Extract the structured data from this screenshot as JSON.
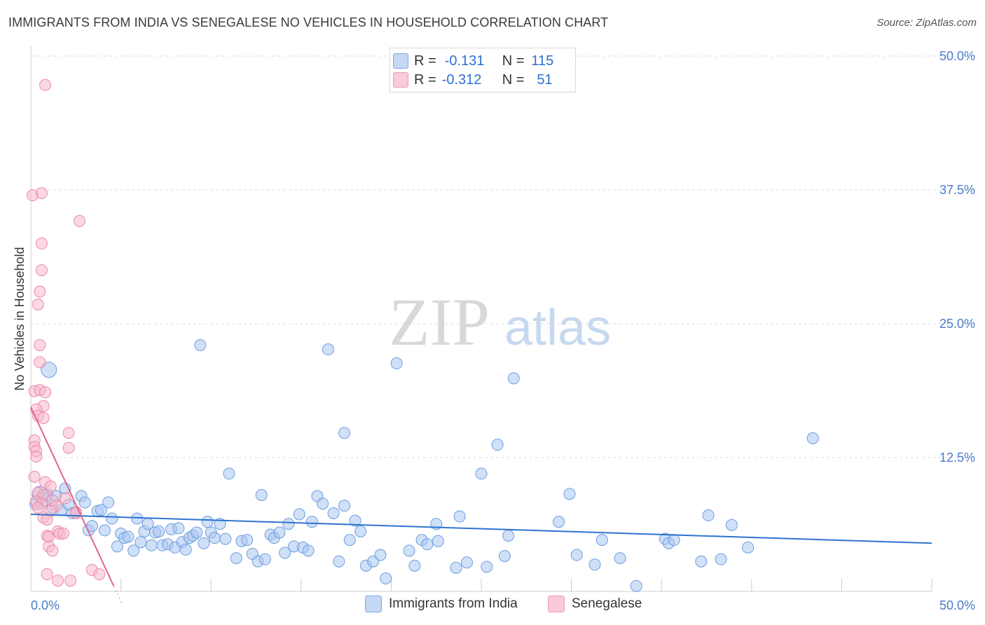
{
  "title": "IMMIGRANTS FROM INDIA VS SENEGALESE NO VEHICLES IN HOUSEHOLD CORRELATION CHART",
  "source": "Source: ZipAtlas.com",
  "watermark": {
    "zip": "ZIP",
    "atlas": "atlas"
  },
  "legend": {
    "rows": [
      {
        "r_label": "R =",
        "r_value": "-0.131",
        "n_label": "N =",
        "n_value": "115"
      },
      {
        "r_label": "R =",
        "r_value": "-0.312",
        "n_label": "N =",
        "n_value": "51"
      }
    ]
  },
  "colors": {
    "india_fill": "#a9c6f0",
    "india_stroke": "#6b9de0",
    "india_line": "#2e74d0",
    "sen_fill": "#f7b8cb",
    "sen_stroke": "#ea8aa8",
    "sen_line": "#e0648e",
    "grid": "#dddddd",
    "axis_label": "#4a7cc9"
  },
  "chart_data": {
    "type": "scatter",
    "title": "IMMIGRANTS FROM INDIA VS SENEGALESE NO VEHICLES IN HOUSEHOLD CORRELATION CHART",
    "xlabel": "",
    "ylabel": "No Vehicles in Household",
    "xlim": [
      0,
      50
    ],
    "ylim": [
      0,
      50
    ],
    "x_tick_labels": [
      "0.0%",
      "50.0%"
    ],
    "y_ticks": [
      12.5,
      25.0,
      37.5,
      50.0
    ],
    "y_tick_labels": [
      "12.5%",
      "25.0%",
      "37.5%",
      "50.0%"
    ],
    "grid": true,
    "legend_position": "top-center",
    "series": [
      {
        "name": "Immigrants from India",
        "r": -0.131,
        "n": 115,
        "trend": {
          "x": [
            0,
            50
          ],
          "y": [
            7.2,
            4.5
          ]
        },
        "points": [
          {
            "x": 0.3,
            "y": 8.2,
            "s": 9
          },
          {
            "x": 0.5,
            "y": 9.1,
            "s": 11
          },
          {
            "x": 0.7,
            "y": 8.6,
            "s": 10
          },
          {
            "x": 0.9,
            "y": 9.0,
            "s": 9
          },
          {
            "x": 1.0,
            "y": 20.7,
            "s": 11
          },
          {
            "x": 1.2,
            "y": 7.8,
            "s": 8
          },
          {
            "x": 1.4,
            "y": 8.9,
            "s": 8
          },
          {
            "x": 1.7,
            "y": 7.6,
            "s": 8
          },
          {
            "x": 1.9,
            "y": 9.6,
            "s": 8
          },
          {
            "x": 2.1,
            "y": 8.1,
            "s": 8
          },
          {
            "x": 2.3,
            "y": 7.3,
            "s": 8
          },
          {
            "x": 2.5,
            "y": 7.4,
            "s": 8
          },
          {
            "x": 2.8,
            "y": 8.9,
            "s": 8
          },
          {
            "x": 3.0,
            "y": 8.3,
            "s": 8
          },
          {
            "x": 3.2,
            "y": 5.7,
            "s": 8
          },
          {
            "x": 3.4,
            "y": 6.1,
            "s": 8
          },
          {
            "x": 3.7,
            "y": 7.5,
            "s": 8
          },
          {
            "x": 3.9,
            "y": 7.6,
            "s": 8
          },
          {
            "x": 4.1,
            "y": 5.7,
            "s": 8
          },
          {
            "x": 4.3,
            "y": 8.3,
            "s": 8
          },
          {
            "x": 4.5,
            "y": 6.8,
            "s": 8
          },
          {
            "x": 4.8,
            "y": 4.2,
            "s": 8
          },
          {
            "x": 5.0,
            "y": 5.4,
            "s": 8
          },
          {
            "x": 5.2,
            "y": 5.0,
            "s": 8
          },
          {
            "x": 5.4,
            "y": 5.1,
            "s": 8
          },
          {
            "x": 5.7,
            "y": 3.8,
            "s": 8
          },
          {
            "x": 5.9,
            "y": 6.8,
            "s": 8
          },
          {
            "x": 6.1,
            "y": 4.6,
            "s": 8
          },
          {
            "x": 6.3,
            "y": 5.6,
            "s": 8
          },
          {
            "x": 6.5,
            "y": 6.3,
            "s": 8
          },
          {
            "x": 6.7,
            "y": 4.3,
            "s": 8
          },
          {
            "x": 6.9,
            "y": 5.5,
            "s": 8
          },
          {
            "x": 7.1,
            "y": 5.6,
            "s": 8
          },
          {
            "x": 7.3,
            "y": 4.3,
            "s": 8
          },
          {
            "x": 7.6,
            "y": 4.4,
            "s": 8
          },
          {
            "x": 7.8,
            "y": 5.8,
            "s": 8
          },
          {
            "x": 8.0,
            "y": 4.1,
            "s": 8
          },
          {
            "x": 8.2,
            "y": 5.9,
            "s": 8
          },
          {
            "x": 8.4,
            "y": 4.6,
            "s": 8
          },
          {
            "x": 8.6,
            "y": 3.9,
            "s": 8
          },
          {
            "x": 8.8,
            "y": 5.0,
            "s": 8
          },
          {
            "x": 9.0,
            "y": 5.2,
            "s": 8
          },
          {
            "x": 9.2,
            "y": 5.5,
            "s": 8
          },
          {
            "x": 9.4,
            "y": 23.0,
            "s": 8
          },
          {
            "x": 9.6,
            "y": 4.5,
            "s": 8
          },
          {
            "x": 9.8,
            "y": 6.5,
            "s": 8
          },
          {
            "x": 10.0,
            "y": 5.5,
            "s": 8
          },
          {
            "x": 10.2,
            "y": 5.0,
            "s": 8
          },
          {
            "x": 10.5,
            "y": 6.3,
            "s": 8
          },
          {
            "x": 10.8,
            "y": 4.9,
            "s": 8
          },
          {
            "x": 11.0,
            "y": 11.0,
            "s": 8
          },
          {
            "x": 11.4,
            "y": 3.1,
            "s": 8
          },
          {
            "x": 11.7,
            "y": 4.7,
            "s": 8
          },
          {
            "x": 12.0,
            "y": 4.8,
            "s": 8
          },
          {
            "x": 12.3,
            "y": 3.5,
            "s": 8
          },
          {
            "x": 12.6,
            "y": 2.8,
            "s": 8
          },
          {
            "x": 12.8,
            "y": 9.0,
            "s": 8
          },
          {
            "x": 13.0,
            "y": 3.0,
            "s": 8
          },
          {
            "x": 13.3,
            "y": 5.3,
            "s": 8
          },
          {
            "x": 13.5,
            "y": 5.0,
            "s": 8
          },
          {
            "x": 13.8,
            "y": 5.5,
            "s": 8
          },
          {
            "x": 14.1,
            "y": 3.6,
            "s": 8
          },
          {
            "x": 14.3,
            "y": 6.3,
            "s": 8
          },
          {
            "x": 14.6,
            "y": 4.2,
            "s": 8
          },
          {
            "x": 14.9,
            "y": 7.2,
            "s": 8
          },
          {
            "x": 15.1,
            "y": 4.1,
            "s": 8
          },
          {
            "x": 15.4,
            "y": 3.8,
            "s": 8
          },
          {
            "x": 15.6,
            "y": 6.5,
            "s": 8
          },
          {
            "x": 15.9,
            "y": 8.9,
            "s": 8
          },
          {
            "x": 16.2,
            "y": 8.2,
            "s": 8
          },
          {
            "x": 16.5,
            "y": 22.6,
            "s": 8
          },
          {
            "x": 16.8,
            "y": 7.3,
            "s": 8
          },
          {
            "x": 17.1,
            "y": 2.8,
            "s": 8
          },
          {
            "x": 17.4,
            "y": 8.0,
            "s": 8
          },
          {
            "x": 17.7,
            "y": 4.8,
            "s": 8
          },
          {
            "x": 18.0,
            "y": 6.6,
            "s": 8
          },
          {
            "x": 18.3,
            "y": 5.6,
            "s": 8
          },
          {
            "x": 18.6,
            "y": 2.4,
            "s": 8
          },
          {
            "x": 19.0,
            "y": 2.8,
            "s": 8
          },
          {
            "x": 19.4,
            "y": 3.4,
            "s": 8
          },
          {
            "x": 19.7,
            "y": 1.2,
            "s": 8
          },
          {
            "x": 17.4,
            "y": 14.8,
            "s": 8
          },
          {
            "x": 20.3,
            "y": 21.3,
            "s": 8
          },
          {
            "x": 21.0,
            "y": 3.8,
            "s": 8
          },
          {
            "x": 21.3,
            "y": 2.4,
            "s": 8
          },
          {
            "x": 21.7,
            "y": 4.8,
            "s": 8
          },
          {
            "x": 22.0,
            "y": 4.4,
            "s": 8
          },
          {
            "x": 22.6,
            "y": 4.7,
            "s": 8
          },
          {
            "x": 22.5,
            "y": 6.3,
            "s": 8
          },
          {
            "x": 23.6,
            "y": 2.2,
            "s": 8
          },
          {
            "x": 23.8,
            "y": 7.0,
            "s": 8
          },
          {
            "x": 24.2,
            "y": 2.7,
            "s": 8
          },
          {
            "x": 25.0,
            "y": 11.0,
            "s": 8
          },
          {
            "x": 25.3,
            "y": 2.3,
            "s": 8
          },
          {
            "x": 25.9,
            "y": 13.7,
            "s": 8
          },
          {
            "x": 26.3,
            "y": 3.3,
            "s": 8
          },
          {
            "x": 26.5,
            "y": 5.2,
            "s": 8
          },
          {
            "x": 26.8,
            "y": 19.9,
            "s": 8
          },
          {
            "x": 29.3,
            "y": 6.5,
            "s": 8
          },
          {
            "x": 29.9,
            "y": 9.1,
            "s": 8
          },
          {
            "x": 30.3,
            "y": 3.4,
            "s": 8
          },
          {
            "x": 31.3,
            "y": 2.5,
            "s": 8
          },
          {
            "x": 31.7,
            "y": 4.8,
            "s": 8
          },
          {
            "x": 32.7,
            "y": 3.1,
            "s": 8
          },
          {
            "x": 33.6,
            "y": 0.5,
            "s": 8
          },
          {
            "x": 35.2,
            "y": 4.9,
            "s": 8
          },
          {
            "x": 35.4,
            "y": 4.5,
            "s": 8
          },
          {
            "x": 35.7,
            "y": 4.8,
            "s": 8
          },
          {
            "x": 37.2,
            "y": 2.8,
            "s": 8
          },
          {
            "x": 37.6,
            "y": 7.1,
            "s": 8
          },
          {
            "x": 38.9,
            "y": 6.2,
            "s": 8
          },
          {
            "x": 38.3,
            "y": 3.0,
            "s": 8
          },
          {
            "x": 39.8,
            "y": 4.1,
            "s": 8
          },
          {
            "x": 43.4,
            "y": 14.3,
            "s": 8
          }
        ]
      },
      {
        "name": "Senegalese",
        "r": -0.312,
        "n": 51,
        "trend": {
          "x": [
            0,
            4.6
          ],
          "y": [
            17.2,
            0.5
          ]
        },
        "points": [
          {
            "x": 0.1,
            "y": 37.0,
            "s": 8
          },
          {
            "x": 0.6,
            "y": 37.2,
            "s": 8
          },
          {
            "x": 0.8,
            "y": 47.3,
            "s": 8
          },
          {
            "x": 2.7,
            "y": 34.6,
            "s": 8
          },
          {
            "x": 0.6,
            "y": 32.5,
            "s": 8
          },
          {
            "x": 0.6,
            "y": 30.0,
            "s": 8
          },
          {
            "x": 0.5,
            "y": 28.0,
            "s": 8
          },
          {
            "x": 0.4,
            "y": 26.8,
            "s": 8
          },
          {
            "x": 0.5,
            "y": 23.0,
            "s": 8
          },
          {
            "x": 0.5,
            "y": 21.4,
            "s": 8
          },
          {
            "x": 0.2,
            "y": 18.7,
            "s": 8
          },
          {
            "x": 0.5,
            "y": 18.8,
            "s": 8
          },
          {
            "x": 0.8,
            "y": 18.6,
            "s": 8
          },
          {
            "x": 0.7,
            "y": 17.3,
            "s": 8
          },
          {
            "x": 0.3,
            "y": 17.0,
            "s": 8
          },
          {
            "x": 0.4,
            "y": 16.4,
            "s": 8
          },
          {
            "x": 0.7,
            "y": 16.2,
            "s": 8
          },
          {
            "x": 2.1,
            "y": 14.8,
            "s": 8
          },
          {
            "x": 0.2,
            "y": 14.1,
            "s": 8
          },
          {
            "x": 0.2,
            "y": 13.5,
            "s": 8
          },
          {
            "x": 0.3,
            "y": 13.1,
            "s": 8
          },
          {
            "x": 2.1,
            "y": 13.4,
            "s": 8
          },
          {
            "x": 0.3,
            "y": 12.6,
            "s": 8
          },
          {
            "x": 0.2,
            "y": 10.7,
            "s": 8
          },
          {
            "x": 0.8,
            "y": 10.2,
            "s": 8
          },
          {
            "x": 1.1,
            "y": 9.8,
            "s": 8
          },
          {
            "x": 0.4,
            "y": 9.2,
            "s": 8
          },
          {
            "x": 0.7,
            "y": 9.0,
            "s": 8
          },
          {
            "x": 1.2,
            "y": 8.5,
            "s": 8
          },
          {
            "x": 0.3,
            "y": 8.4,
            "s": 8
          },
          {
            "x": 0.6,
            "y": 8.2,
            "s": 8
          },
          {
            "x": 1.4,
            "y": 8.0,
            "s": 8
          },
          {
            "x": 0.4,
            "y": 7.8,
            "s": 8
          },
          {
            "x": 1.1,
            "y": 7.5,
            "s": 8
          },
          {
            "x": 2.5,
            "y": 7.4,
            "s": 8
          },
          {
            "x": 0.7,
            "y": 6.9,
            "s": 8
          },
          {
            "x": 0.9,
            "y": 6.7,
            "s": 8
          },
          {
            "x": 1.5,
            "y": 5.6,
            "s": 8
          },
          {
            "x": 1.6,
            "y": 5.4,
            "s": 8
          },
          {
            "x": 1.8,
            "y": 5.4,
            "s": 8
          },
          {
            "x": 0.9,
            "y": 5.2,
            "s": 8
          },
          {
            "x": 1.0,
            "y": 5.1,
            "s": 8
          },
          {
            "x": 1.0,
            "y": 4.2,
            "s": 8
          },
          {
            "x": 1.2,
            "y": 3.8,
            "s": 8
          },
          {
            "x": 3.4,
            "y": 2.0,
            "s": 8
          },
          {
            "x": 3.8,
            "y": 1.6,
            "s": 8
          },
          {
            "x": 0.9,
            "y": 1.6,
            "s": 8
          },
          {
            "x": 1.5,
            "y": 1.0,
            "s": 8
          },
          {
            "x": 2.2,
            "y": 1.0,
            "s": 8
          },
          {
            "x": 2.5,
            "y": 7.3,
            "s": 8
          },
          {
            "x": 1.9,
            "y": 8.7,
            "s": 8
          }
        ]
      }
    ]
  },
  "bottom_legend": [
    {
      "label": "Immigrants from India"
    },
    {
      "label": "Senegalese"
    }
  ]
}
